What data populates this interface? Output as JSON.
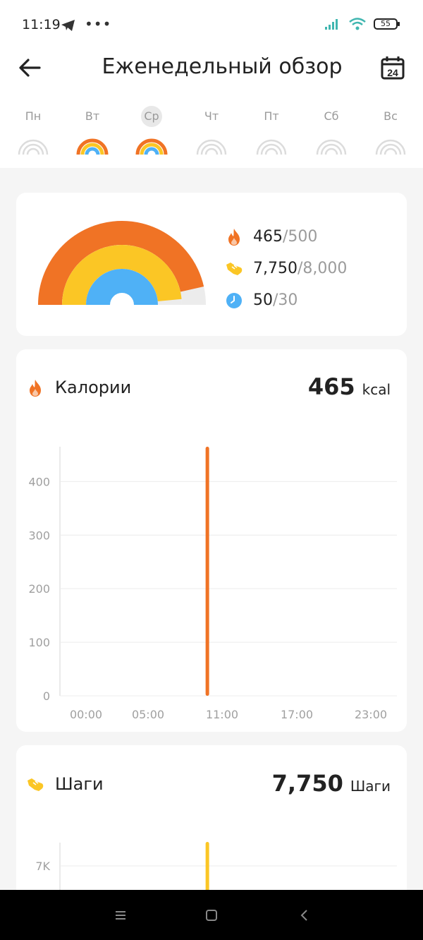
{
  "status_bar": {
    "time": "11:19",
    "battery": "55"
  },
  "header": {
    "title": "Еженедельный обзор",
    "calendar_day": "24"
  },
  "week": [
    {
      "label": "Пн",
      "state": "empty"
    },
    {
      "label": "Вт",
      "state": "filled"
    },
    {
      "label": "Ср",
      "state": "filled",
      "selected": true
    },
    {
      "label": "Чт",
      "state": "empty"
    },
    {
      "label": "Пт",
      "state": "empty"
    },
    {
      "label": "Сб",
      "state": "empty"
    },
    {
      "label": "Вс",
      "state": "empty"
    }
  ],
  "summary": {
    "calories": {
      "value": "465",
      "goal": "/500",
      "progress": 0.93
    },
    "steps": {
      "value": "7,750",
      "goal": "/8,000",
      "progress": 0.969
    },
    "minutes": {
      "value": "50",
      "goal": "/30",
      "progress": 1.0
    },
    "colors": {
      "calories": "#f07325",
      "steps": "#fbc625",
      "minutes": "#4fb1f6"
    }
  },
  "calories_card": {
    "title": "Калории",
    "value": "465",
    "unit": "kcal",
    "chart_data": {
      "type": "bar",
      "x_ticks": [
        "00:00",
        "05:00",
        "11:00",
        "17:00",
        "23:00"
      ],
      "y_ticks": [
        "0",
        "100",
        "200",
        "300",
        "400"
      ],
      "ylim": [
        0,
        465
      ],
      "x_range_hours": [
        0,
        24
      ],
      "bars": [
        {
          "hour": 10.5,
          "value": 465
        }
      ],
      "color": "#f07325"
    }
  },
  "steps_card": {
    "title": "Шаги",
    "value": "7,750",
    "unit": "Шаги",
    "chart_data": {
      "type": "bar",
      "y_ticks": [
        "7K"
      ],
      "bars": [
        {
          "hour": 10.5,
          "value": 7750
        }
      ],
      "color": "#fbc625"
    }
  }
}
